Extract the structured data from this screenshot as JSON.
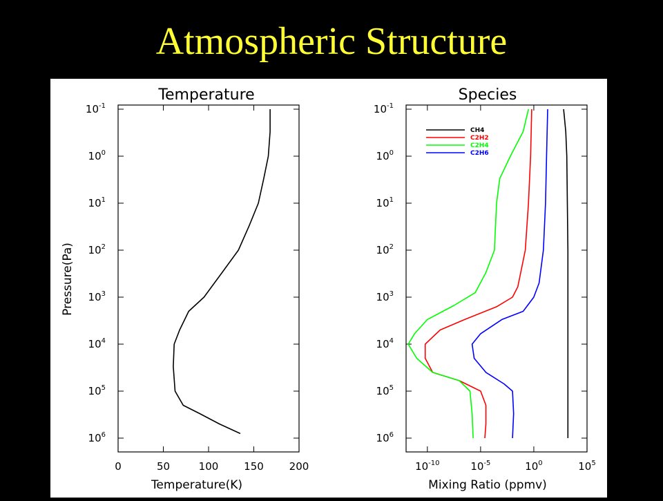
{
  "slide": {
    "title": "Atmospheric Structure"
  },
  "chart_data": [
    {
      "type": "line",
      "title": "Temperature",
      "xlabel": "Temperature(K)",
      "ylabel": "Pressure(Pa)",
      "xlim": [
        0,
        200
      ],
      "ylim_log10": [
        -1,
        6
      ],
      "y_scale": "log, inverted (pressure increases downward)",
      "xticks": [
        "0",
        "50",
        "100",
        "150",
        "200"
      ],
      "yticks": [
        {
          "base": "10",
          "exp": "-1"
        },
        {
          "base": "10",
          "exp": "0"
        },
        {
          "base": "10",
          "exp": "1"
        },
        {
          "base": "10",
          "exp": "2"
        },
        {
          "base": "10",
          "exp": "3"
        },
        {
          "base": "10",
          "exp": "4"
        },
        {
          "base": "10",
          "exp": "5"
        },
        {
          "base": "10",
          "exp": "6"
        }
      ],
      "series": [
        {
          "color": "#000000",
          "points": [
            {
              "temperature_K": 168,
              "pressure_Pa": 0.1
            },
            {
              "temperature_K": 168,
              "pressure_Pa": 0.3
            },
            {
              "temperature_K": 166,
              "pressure_Pa": 1
            },
            {
              "temperature_K": 161,
              "pressure_Pa": 3
            },
            {
              "temperature_K": 155,
              "pressure_Pa": 10
            },
            {
              "temperature_K": 145,
              "pressure_Pa": 30
            },
            {
              "temperature_K": 133,
              "pressure_Pa": 100
            },
            {
              "temperature_K": 115,
              "pressure_Pa": 300
            },
            {
              "temperature_K": 95,
              "pressure_Pa": 1000
            },
            {
              "temperature_K": 78,
              "pressure_Pa": 2000
            },
            {
              "temperature_K": 68,
              "pressure_Pa": 5000
            },
            {
              "temperature_K": 62,
              "pressure_Pa": 10000
            },
            {
              "temperature_K": 61,
              "pressure_Pa": 30000
            },
            {
              "temperature_K": 63,
              "pressure_Pa": 100000
            },
            {
              "temperature_K": 72,
              "pressure_Pa": 200000
            },
            {
              "temperature_K": 90,
              "pressure_Pa": 300000
            },
            {
              "temperature_K": 112,
              "pressure_Pa": 500000
            },
            {
              "temperature_K": 135,
              "pressure_Pa": 800000
            }
          ]
        }
      ]
    },
    {
      "type": "line",
      "title": "Species",
      "xlabel": "Mixing Ratio (ppmv)",
      "ylabel": "",
      "xlim_log10": [
        -12,
        5
      ],
      "x_scale": "log",
      "ylim_log10": [
        -1,
        6
      ],
      "y_scale": "log, inverted (pressure increases downward)",
      "xticks": [
        {
          "base": "10",
          "exp": "-10"
        },
        {
          "base": "10",
          "exp": "-5"
        },
        {
          "base": "10",
          "exp": "0"
        },
        {
          "base": "10",
          "exp": "5"
        }
      ],
      "yticks": [
        {
          "base": "10",
          "exp": "-1"
        },
        {
          "base": "10",
          "exp": "0"
        },
        {
          "base": "10",
          "exp": "1"
        },
        {
          "base": "10",
          "exp": "2"
        },
        {
          "base": "10",
          "exp": "3"
        },
        {
          "base": "10",
          "exp": "4"
        },
        {
          "base": "10",
          "exp": "5"
        },
        {
          "base": "10",
          "exp": "6"
        }
      ],
      "legend_position": "top-left",
      "series": [
        {
          "name": "CH4",
          "color": "#000000",
          "points": [
            [
              2.8,
              0.1
            ],
            [
              3.0,
              0.3
            ],
            [
              3.1,
              1
            ],
            [
              3.15,
              10
            ],
            [
              3.2,
              100
            ],
            [
              3.2,
              1000
            ],
            [
              3.2,
              10000
            ],
            [
              3.2,
              100000
            ],
            [
              3.2,
              1000000
            ]
          ]
        },
        {
          "name": "C2H2",
          "color": "#ff0000",
          "points": [
            [
              -0.2,
              0.1
            ],
            [
              -0.3,
              1
            ],
            [
              -0.5,
              10
            ],
            [
              -0.8,
              100
            ],
            [
              -1.5,
              600
            ],
            [
              -2.0,
              1000
            ],
            [
              -3.5,
              1600
            ],
            [
              -6.5,
              3000
            ],
            [
              -8.8,
              5000
            ],
            [
              -10.2,
              10000
            ],
            [
              -10.2,
              20000
            ],
            [
              -9.5,
              40000
            ],
            [
              -7.0,
              60000
            ],
            [
              -5.0,
              100000
            ],
            [
              -4.5,
              200000
            ],
            [
              -4.5,
              500000
            ],
            [
              -4.6,
              1000000
            ]
          ]
        },
        {
          "name": "C2H4",
          "color": "#00ff00",
          "points": [
            [
              -0.5,
              0.1
            ],
            [
              -1.0,
              0.3
            ],
            [
              -2.2,
              1
            ],
            [
              -3.2,
              3
            ],
            [
              -3.5,
              10
            ],
            [
              -3.7,
              100
            ],
            [
              -4.5,
              300
            ],
            [
              -5.5,
              800
            ],
            [
              -7.5,
              1500
            ],
            [
              -10.0,
              3000
            ],
            [
              -11.2,
              6000
            ],
            [
              -11.8,
              10000
            ],
            [
              -11.0,
              20000
            ],
            [
              -9.5,
              40000
            ],
            [
              -7.0,
              60000
            ],
            [
              -6.0,
              100000
            ],
            [
              -5.8,
              300000
            ],
            [
              -5.7,
              1000000
            ]
          ]
        },
        {
          "name": "C2H6",
          "color": "#0000ff",
          "points": [
            [
              1.3,
              0.1
            ],
            [
              1.2,
              1
            ],
            [
              1.1,
              10
            ],
            [
              0.9,
              100
            ],
            [
              0.5,
              500
            ],
            [
              0.0,
              1000
            ],
            [
              -1.0,
              2000
            ],
            [
              -3.0,
              3000
            ],
            [
              -5.0,
              6000
            ],
            [
              -5.8,
              10000
            ],
            [
              -5.6,
              20000
            ],
            [
              -4.5,
              40000
            ],
            [
              -2.8,
              70000
            ],
            [
              -2.0,
              100000
            ],
            [
              -1.9,
              300000
            ],
            [
              -2.0,
              1000000
            ]
          ]
        }
      ],
      "x_unit_note": "x values given as log10(ppmv)"
    }
  ]
}
